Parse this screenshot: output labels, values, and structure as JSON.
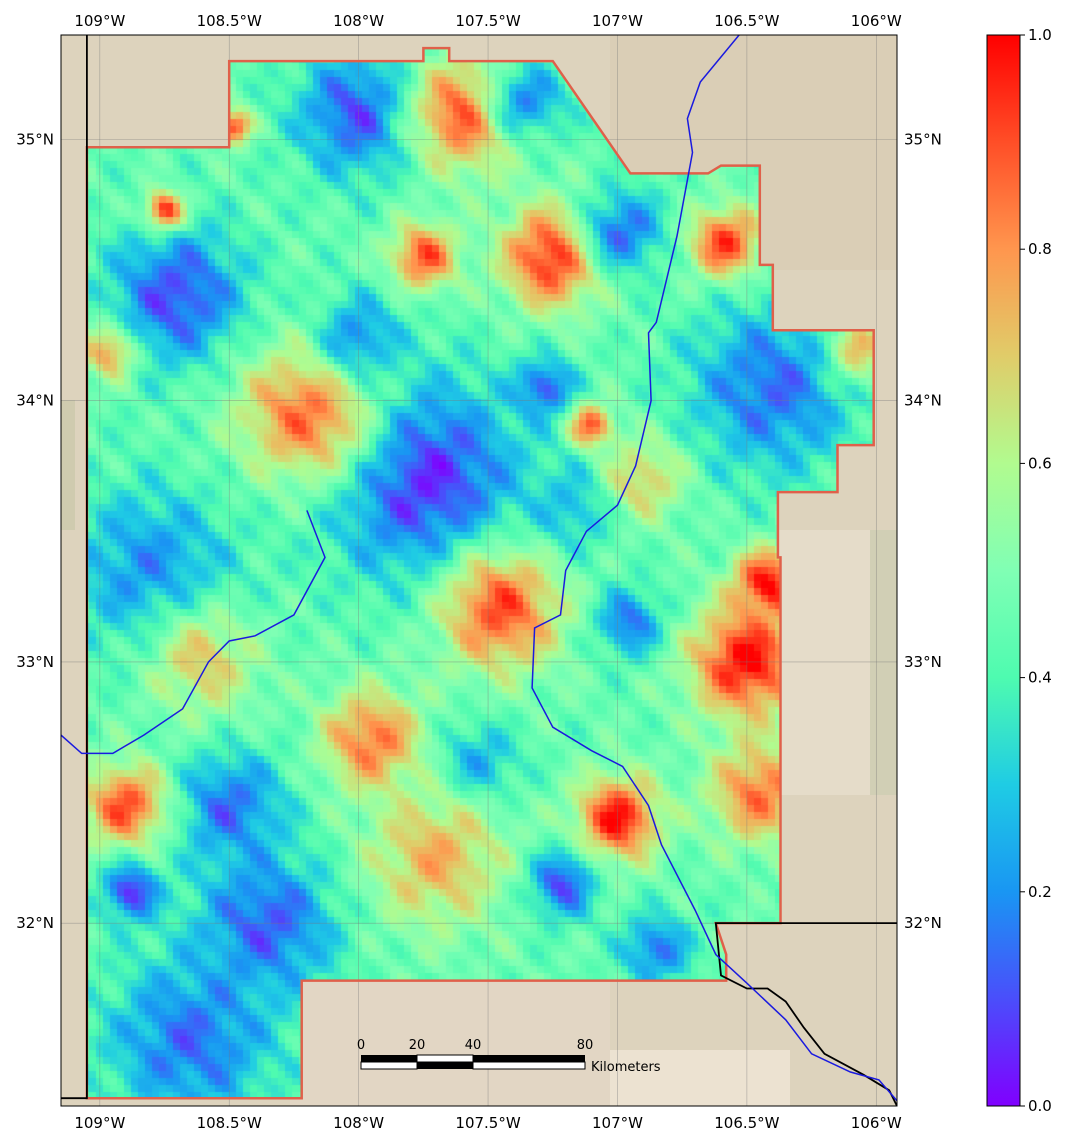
{
  "map": {
    "lon_range": [
      -109.15,
      -105.92
    ],
    "lat_range": [
      31.3,
      35.4
    ],
    "lon_ticks": [
      {
        "value": -109.0,
        "label": "109°W"
      },
      {
        "value": -108.5,
        "label": "108.5°W"
      },
      {
        "value": -108.0,
        "label": "108°W"
      },
      {
        "value": -107.5,
        "label": "107.5°W"
      },
      {
        "value": -107.0,
        "label": "107°W"
      },
      {
        "value": -106.5,
        "label": "106.5°W"
      },
      {
        "value": -106.0,
        "label": "106°W"
      }
    ],
    "lat_ticks": [
      {
        "value": 35.0,
        "label": "35°N"
      },
      {
        "value": 34.0,
        "label": "34°N"
      },
      {
        "value": 33.0,
        "label": "33°N"
      },
      {
        "value": 32.0,
        "label": "32°N"
      }
    ],
    "basemap_color": "#ddd3bd",
    "gridline_color": "#7a7a7a",
    "study_area_outline_color": "#e0604a",
    "river_color": "#1a1adf",
    "border_color": "#000000",
    "study_area_boundary": [
      [
        -109.05,
        34.97
      ],
      [
        -108.5,
        34.97
      ],
      [
        -108.5,
        35.3
      ],
      [
        -107.75,
        35.3
      ],
      [
        -107.75,
        35.35
      ],
      [
        -107.65,
        35.35
      ],
      [
        -107.65,
        35.3
      ],
      [
        -107.25,
        35.3
      ],
      [
        -106.95,
        34.87
      ],
      [
        -106.65,
        34.87
      ],
      [
        -106.6,
        34.9
      ],
      [
        -106.45,
        34.9
      ],
      [
        -106.45,
        34.52
      ],
      [
        -106.4,
        34.52
      ],
      [
        -106.4,
        34.27
      ],
      [
        -106.01,
        34.27
      ],
      [
        -106.01,
        33.83
      ],
      [
        -106.15,
        33.83
      ],
      [
        -106.15,
        33.65
      ],
      [
        -106.38,
        33.65
      ],
      [
        -106.38,
        33.4
      ],
      [
        -106.37,
        33.4
      ],
      [
        -106.37,
        32.0
      ],
      [
        -106.62,
        32.0
      ],
      [
        -106.58,
        31.88
      ],
      [
        -106.58,
        31.78
      ],
      [
        -108.22,
        31.78
      ],
      [
        -108.22,
        31.33
      ],
      [
        -109.05,
        31.33
      ]
    ],
    "rivers": [
      [
        [
          -106.53,
          35.4
        ],
        [
          -106.68,
          35.22
        ],
        [
          -106.73,
          35.08
        ],
        [
          -106.71,
          34.95
        ],
        [
          -106.77,
          34.63
        ],
        [
          -106.85,
          34.3
        ],
        [
          -106.88,
          34.26
        ],
        [
          -106.87,
          34.0
        ],
        [
          -106.93,
          33.75
        ],
        [
          -107.0,
          33.6
        ],
        [
          -107.12,
          33.5
        ],
        [
          -107.2,
          33.35
        ],
        [
          -107.22,
          33.18
        ],
        [
          -107.32,
          33.13
        ],
        [
          -107.33,
          32.9
        ],
        [
          -107.25,
          32.75
        ],
        [
          -107.1,
          32.66
        ],
        [
          -106.98,
          32.6
        ],
        [
          -106.88,
          32.45
        ],
        [
          -106.83,
          32.3
        ],
        [
          -106.7,
          32.05
        ],
        [
          -106.62,
          31.88
        ],
        [
          -106.5,
          31.77
        ],
        [
          -106.35,
          31.63
        ],
        [
          -106.25,
          31.5
        ],
        [
          -106.1,
          31.43
        ],
        [
          -105.99,
          31.4
        ],
        [
          -105.92,
          31.32
        ]
      ],
      [
        [
          -108.2,
          33.58
        ],
        [
          -108.13,
          33.4
        ],
        [
          -108.25,
          33.18
        ],
        [
          -108.4,
          33.1
        ],
        [
          -108.5,
          33.08
        ],
        [
          -108.58,
          33.0
        ],
        [
          -108.68,
          32.82
        ],
        [
          -108.83,
          32.72
        ],
        [
          -108.95,
          32.65
        ],
        [
          -109.07,
          32.65
        ],
        [
          -109.15,
          32.72
        ]
      ]
    ],
    "borders": [
      [
        [
          -109.05,
          35.4
        ],
        [
          -109.05,
          31.33
        ],
        [
          -109.15,
          31.33
        ]
      ],
      [
        [
          -105.92,
          32.0
        ],
        [
          -106.62,
          32.0
        ],
        [
          -106.6,
          31.8
        ],
        [
          -106.5,
          31.75
        ],
        [
          -106.42,
          31.75
        ],
        [
          -106.35,
          31.7
        ],
        [
          -106.28,
          31.6
        ],
        [
          -106.2,
          31.5
        ],
        [
          -106.05,
          31.42
        ],
        [
          -105.95,
          31.36
        ],
        [
          -105.92,
          31.3
        ]
      ]
    ],
    "value_field": {
      "base": 0.45,
      "grid_spacing_deg": 0.03,
      "features": [
        {
          "lon": -108.95,
          "lat": 34.2,
          "radius": 0.1,
          "value": 0.95
        },
        {
          "lon": -108.7,
          "lat": 34.4,
          "radius": 0.25,
          "value": 0.1
        },
        {
          "lon": -108.75,
          "lat": 34.73,
          "radius": 0.07,
          "value": 0.95
        },
        {
          "lon": -108.48,
          "lat": 35.05,
          "radius": 0.06,
          "value": 0.95
        },
        {
          "lon": -108.0,
          "lat": 35.1,
          "radius": 0.22,
          "value": 0.1
        },
        {
          "lon": -107.58,
          "lat": 35.1,
          "radius": 0.2,
          "value": 0.92
        },
        {
          "lon": -107.35,
          "lat": 35.15,
          "radius": 0.15,
          "value": 0.2
        },
        {
          "lon": -107.25,
          "lat": 34.55,
          "radius": 0.18,
          "value": 0.97
        },
        {
          "lon": -107.75,
          "lat": 34.55,
          "radius": 0.12,
          "value": 0.9
        },
        {
          "lon": -106.98,
          "lat": 34.65,
          "radius": 0.15,
          "value": 0.15
        },
        {
          "lon": -106.58,
          "lat": 34.6,
          "radius": 0.13,
          "value": 0.95
        },
        {
          "lon": -106.1,
          "lat": 34.18,
          "radius": 0.12,
          "value": 0.95
        },
        {
          "lon": -106.4,
          "lat": 34.05,
          "radius": 0.3,
          "value": 0.15
        },
        {
          "lon": -107.75,
          "lat": 33.7,
          "radius": 0.35,
          "value": 0.05
        },
        {
          "lon": -108.2,
          "lat": 33.95,
          "radius": 0.25,
          "value": 0.85
        },
        {
          "lon": -108.8,
          "lat": 33.35,
          "radius": 0.3,
          "value": 0.2
        },
        {
          "lon": -108.0,
          "lat": 34.25,
          "radius": 0.15,
          "value": 0.2
        },
        {
          "lon": -107.28,
          "lat": 34.05,
          "radius": 0.1,
          "value": 0.1
        },
        {
          "lon": -107.1,
          "lat": 33.9,
          "radius": 0.08,
          "value": 0.9
        },
        {
          "lon": -107.45,
          "lat": 33.2,
          "radius": 0.22,
          "value": 0.9
        },
        {
          "lon": -106.95,
          "lat": 33.15,
          "radius": 0.12,
          "value": 0.15
        },
        {
          "lon": -106.5,
          "lat": 33.0,
          "radius": 0.2,
          "value": 1.0
        },
        {
          "lon": -106.42,
          "lat": 33.3,
          "radius": 0.12,
          "value": 1.0
        },
        {
          "lon": -106.45,
          "lat": 32.5,
          "radius": 0.18,
          "value": 0.85
        },
        {
          "lon": -107.0,
          "lat": 32.4,
          "radius": 0.15,
          "value": 0.98
        },
        {
          "lon": -107.55,
          "lat": 32.6,
          "radius": 0.15,
          "value": 0.2
        },
        {
          "lon": -107.95,
          "lat": 32.7,
          "radius": 0.18,
          "value": 0.85
        },
        {
          "lon": -108.5,
          "lat": 32.45,
          "radius": 0.2,
          "value": 0.15
        },
        {
          "lon": -108.9,
          "lat": 32.45,
          "radius": 0.15,
          "value": 0.9
        },
        {
          "lon": -108.88,
          "lat": 32.12,
          "radius": 0.1,
          "value": 0.05
        },
        {
          "lon": -108.35,
          "lat": 32.0,
          "radius": 0.25,
          "value": 0.12
        },
        {
          "lon": -108.65,
          "lat": 31.55,
          "radius": 0.3,
          "value": 0.15
        },
        {
          "lon": -107.22,
          "lat": 32.15,
          "radius": 0.12,
          "value": 0.08
        },
        {
          "lon": -107.7,
          "lat": 32.25,
          "radius": 0.25,
          "value": 0.75
        },
        {
          "lon": -106.85,
          "lat": 31.9,
          "radius": 0.12,
          "value": 0.15
        },
        {
          "lon": -107.15,
          "lat": 33.6,
          "radius": 0.15,
          "value": 0.25
        },
        {
          "lon": -106.9,
          "lat": 33.7,
          "radius": 0.15,
          "value": 0.7
        },
        {
          "lon": -108.6,
          "lat": 33.0,
          "radius": 0.2,
          "value": 0.7
        }
      ]
    }
  },
  "scale_bar": {
    "tick_labels": [
      {
        "km": 0,
        "label": "0"
      },
      {
        "km": 20,
        "label": "20"
      },
      {
        "km": 40,
        "label": "40"
      },
      {
        "km": 80,
        "label": "80"
      }
    ],
    "unit_label": "Kilometers"
  },
  "colorbar": {
    "min": 0.0,
    "max": 1.0,
    "ticks": [
      {
        "value": 0.0,
        "label": "0.0"
      },
      {
        "value": 0.2,
        "label": "0.2"
      },
      {
        "value": 0.4,
        "label": "0.4"
      },
      {
        "value": 0.6,
        "label": "0.6"
      },
      {
        "value": 0.8,
        "label": "0.8"
      },
      {
        "value": 1.0,
        "label": "1.0"
      }
    ],
    "colormap_stops": [
      "#8000ff",
      "#4a4efb",
      "#1996f3",
      "#1fcce4",
      "#4efbb0",
      "#80ffb4",
      "#b1fb8f",
      "#e0cc69",
      "#ff964e",
      "#ff4e27",
      "#ff0000"
    ]
  }
}
